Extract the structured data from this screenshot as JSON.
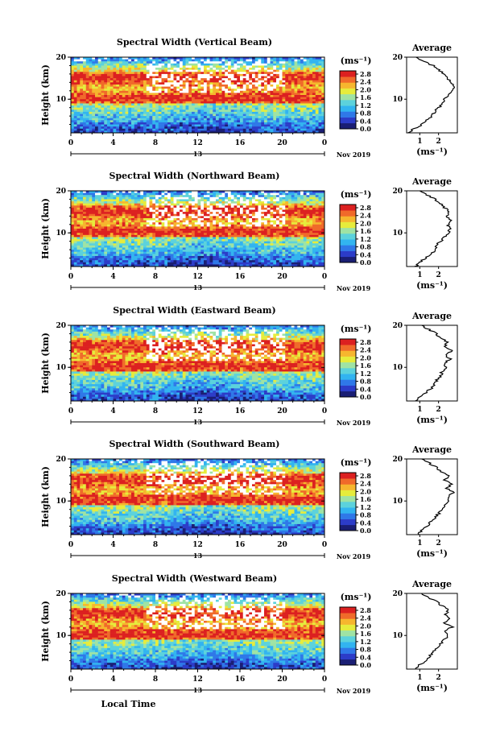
{
  "chart_data": {
    "type": "heatmap",
    "colorbar": {
      "unit": "(ms⁻¹)",
      "ticks": [
        "2.8",
        "2.4",
        "2.0",
        "1.6",
        "1.2",
        "0.8",
        "0.4",
        "0.0"
      ],
      "range": [
        0.0,
        3.0
      ],
      "colormap": [
        "#1a1e74",
        "#2c3cc8",
        "#2f78e8",
        "#32b4f0",
        "#5cd2dc",
        "#9fe3a4",
        "#e6ec3c",
        "#f6b62e",
        "#f06a2a",
        "#dc2020"
      ]
    },
    "date_label": "Nov 2019",
    "mid_day": "13",
    "x_axis": {
      "ticks": [
        "0",
        "4",
        "8",
        "12",
        "16",
        "20",
        "0"
      ],
      "xlabel": "Local Time",
      "range_hours": [
        0,
        24
      ]
    },
    "y_axis": {
      "ticks": [
        "20",
        "10"
      ],
      "ylabel": "Height (km)",
      "range_km": [
        2,
        20
      ]
    },
    "profile": {
      "title": "Average",
      "xlabel": "(ms⁻¹)",
      "yticks": [
        "20",
        "10"
      ]
    },
    "panels": [
      {
        "title": "Spectral Width (Vertical Beam)",
        "profile_xticks": [
          "1",
          "2"
        ],
        "average_profile": {
          "height_km": [
            2,
            3,
            4,
            5,
            6,
            7,
            8,
            9,
            10,
            11,
            12,
            13,
            14,
            15,
            16,
            17,
            18,
            19,
            20
          ],
          "width": [
            0.4,
            0.7,
            1.1,
            1.4,
            1.6,
            1.8,
            2.0,
            2.2,
            2.3,
            2.5,
            2.7,
            2.8,
            2.7,
            2.5,
            2.3,
            2.0,
            1.7,
            1.2,
            0.8
          ]
        }
      },
      {
        "title": "Spectral Width (Northward Beam)",
        "profile_xticks": [
          "1",
          "2"
        ],
        "average_profile": {
          "height_km": [
            2,
            3,
            4,
            5,
            6,
            7,
            8,
            9,
            10,
            11,
            12,
            13,
            14,
            15,
            16,
            17,
            18,
            19,
            20
          ],
          "width": [
            0.8,
            1.0,
            1.3,
            1.6,
            1.8,
            1.9,
            2.1,
            2.3,
            2.5,
            2.6,
            2.5,
            2.7,
            2.4,
            2.6,
            2.3,
            2.1,
            1.8,
            1.4,
            1.0
          ]
        }
      },
      {
        "title": "Spectral Width (Eastward Beam)",
        "profile_xticks": [
          "1",
          "2"
        ],
        "average_profile": {
          "height_km": [
            2,
            3,
            4,
            5,
            6,
            7,
            8,
            9,
            10,
            11,
            12,
            13,
            14,
            15,
            16,
            17,
            18,
            19,
            20
          ],
          "width": [
            0.8,
            1.0,
            1.3,
            1.6,
            1.8,
            1.9,
            2.1,
            2.2,
            2.4,
            2.3,
            2.6,
            2.4,
            2.7,
            2.3,
            2.5,
            2.1,
            1.9,
            1.5,
            1.1
          ]
        }
      },
      {
        "title": "Spectral Width (Southward Beam)",
        "profile_xticks": [
          "1",
          "2"
        ],
        "average_profile": {
          "height_km": [
            2,
            3,
            4,
            5,
            6,
            7,
            8,
            9,
            10,
            11,
            12,
            13,
            14,
            15,
            16,
            17,
            18,
            19,
            20
          ],
          "width": [
            0.9,
            1.1,
            1.4,
            1.6,
            1.8,
            2.0,
            2.2,
            2.3,
            2.6,
            2.5,
            2.8,
            2.4,
            2.7,
            2.3,
            2.6,
            2.1,
            1.9,
            1.5,
            1.1
          ]
        }
      },
      {
        "title": "Spectral Width (Westward Beam)",
        "profile_xticks": [
          "1",
          "2"
        ],
        "average_profile": {
          "height_km": [
            2,
            3,
            4,
            5,
            6,
            7,
            8,
            9,
            10,
            11,
            12,
            13,
            14,
            15,
            16,
            17,
            18,
            19,
            20
          ],
          "width": [
            0.8,
            1.0,
            1.3,
            1.5,
            1.7,
            1.9,
            2.1,
            2.3,
            2.5,
            2.4,
            2.7,
            2.3,
            2.6,
            2.4,
            2.5,
            2.2,
            1.9,
            1.5,
            1.1
          ]
        }
      }
    ]
  }
}
